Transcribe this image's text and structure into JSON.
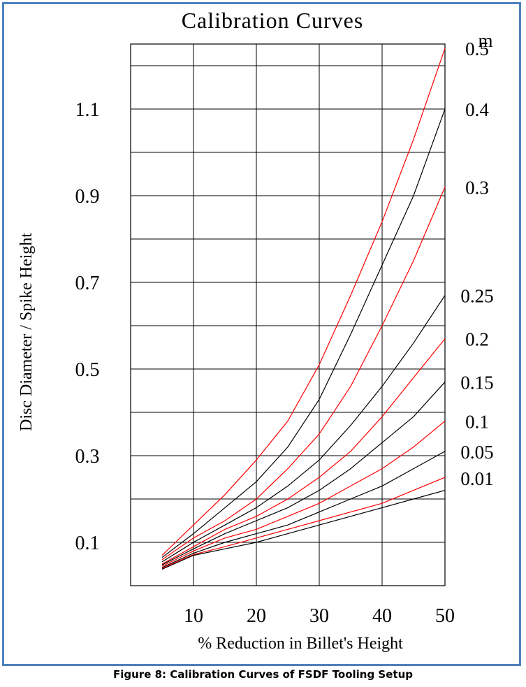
{
  "caption": "Figure 8: Calibration Curves of FSDF Tooling Setup",
  "chart_data": {
    "type": "line",
    "title": "Calibration Curves",
    "xlabel": "% Reduction in Billet's Height",
    "ylabel": "Disc Diameter / Spike Height",
    "xlim": [
      0,
      50
    ],
    "ylim": [
      0,
      1.25
    ],
    "x_ticks": [
      "10",
      "20",
      "30",
      "40",
      "50"
    ],
    "y_ticks": [
      "0.1",
      "0.3",
      "0.5",
      "0.7",
      "0.9",
      "1.1"
    ],
    "grid": true,
    "legend_title": "m",
    "x": [
      5,
      10,
      15,
      20,
      25,
      30,
      35,
      40,
      45,
      50
    ],
    "series": [
      {
        "name": "0.5",
        "color": "#ff0000",
        "values": [
          0.07,
          0.14,
          0.21,
          0.29,
          0.38,
          0.51,
          0.67,
          0.84,
          1.03,
          1.24
        ]
      },
      {
        "name": "0.4",
        "color": "#000000",
        "values": [
          0.065,
          0.12,
          0.18,
          0.24,
          0.32,
          0.43,
          0.58,
          0.74,
          0.9,
          1.1
        ]
      },
      {
        "name": "0.3",
        "color": "#ff0000",
        "values": [
          0.06,
          0.11,
          0.15,
          0.2,
          0.27,
          0.35,
          0.46,
          0.6,
          0.75,
          0.92
        ]
      },
      {
        "name": "0.25",
        "color": "#000000",
        "values": [
          0.055,
          0.1,
          0.14,
          0.18,
          0.23,
          0.29,
          0.37,
          0.46,
          0.56,
          0.67
        ]
      },
      {
        "name": "0.2",
        "color": "#ff0000",
        "values": [
          0.05,
          0.09,
          0.13,
          0.16,
          0.2,
          0.25,
          0.31,
          0.39,
          0.48,
          0.57
        ]
      },
      {
        "name": "0.15",
        "color": "#000000",
        "values": [
          0.048,
          0.085,
          0.12,
          0.15,
          0.18,
          0.22,
          0.27,
          0.33,
          0.39,
          0.47
        ]
      },
      {
        "name": "0.1",
        "color": "#ff0000",
        "values": [
          0.045,
          0.08,
          0.11,
          0.13,
          0.16,
          0.19,
          0.23,
          0.27,
          0.32,
          0.38
        ]
      },
      {
        "name": "0.05",
        "color": "#000000",
        "values": [
          0.042,
          0.075,
          0.1,
          0.12,
          0.14,
          0.17,
          0.2,
          0.23,
          0.27,
          0.31
        ]
      },
      {
        "name": "0.01",
        "color": "#ff0000",
        "values": [
          0.04,
          0.072,
          0.09,
          0.11,
          0.13,
          0.15,
          0.17,
          0.19,
          0.22,
          0.25
        ]
      },
      {
        "name": "",
        "color": "#000000",
        "values": [
          0.038,
          0.07,
          0.085,
          0.1,
          0.12,
          0.14,
          0.16,
          0.18,
          0.2,
          0.22
        ]
      }
    ]
  }
}
